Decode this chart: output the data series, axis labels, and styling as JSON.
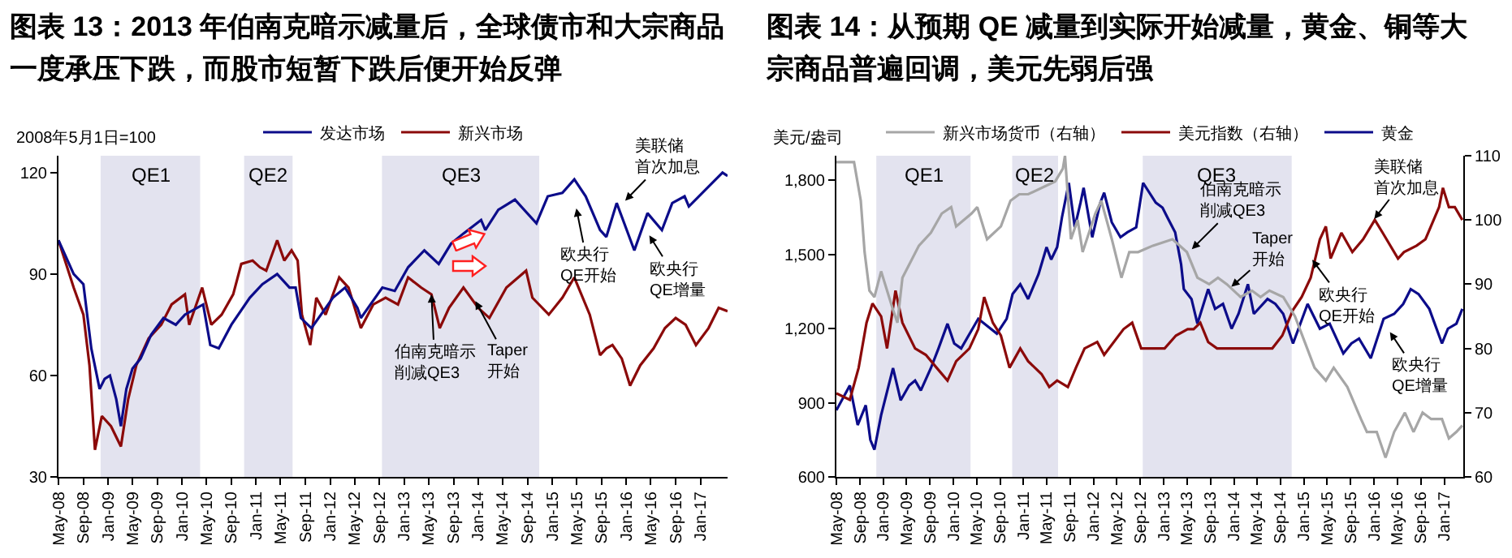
{
  "chart_data": [
    {
      "type": "line",
      "title": "图表 13：2013 年伯南克暗示减量后，全球债市和大宗商品一度承压下跌，而股市短暂下跌后便开始反弹",
      "ylabel": "2008年5月1日=100",
      "legend": "top",
      "xlim": [
        "2008-05-01",
        "2017-05-15"
      ],
      "ylim": [
        30,
        125
      ],
      "yticks": [
        30,
        60,
        90,
        120
      ],
      "xticks": [
        {
          "value": "2008-05",
          "label": "May-08"
        },
        {
          "value": "2008-09",
          "label": "Sep-08"
        },
        {
          "value": "2009-01",
          "label": "Jan-09"
        },
        {
          "value": "2009-05",
          "label": "May-09"
        },
        {
          "value": "2009-09",
          "label": "Sep-09"
        },
        {
          "value": "2010-01",
          "label": "Jan-10"
        },
        {
          "value": "2010-05",
          "label": "May-10"
        },
        {
          "value": "2010-09",
          "label": "Sep-10"
        },
        {
          "value": "2011-01",
          "label": "Jan-11"
        },
        {
          "value": "2011-05",
          "label": "May-11"
        },
        {
          "value": "2011-09",
          "label": "Sep-11"
        },
        {
          "value": "2012-01",
          "label": "Jan-12"
        },
        {
          "value": "2012-05",
          "label": "May-12"
        },
        {
          "value": "2012-09",
          "label": "Sep-12"
        },
        {
          "value": "2013-01",
          "label": "Jan-13"
        },
        {
          "value": "2013-05",
          "label": "May-13"
        },
        {
          "value": "2013-09",
          "label": "Sep-13"
        },
        {
          "value": "2014-01",
          "label": "Jan-14"
        },
        {
          "value": "2014-05",
          "label": "May-14"
        },
        {
          "value": "2014-09",
          "label": "Sep-14"
        },
        {
          "value": "2015-01",
          "label": "Jan-15"
        },
        {
          "value": "2015-05",
          "label": "May-15"
        },
        {
          "value": "2015-09",
          "label": "Sep-15"
        },
        {
          "value": "2016-01",
          "label": "Jan-16"
        },
        {
          "value": "2016-05",
          "label": "May-16"
        },
        {
          "value": "2016-09",
          "label": "Sep-16"
        },
        {
          "value": "2017-01",
          "label": "Jan-17"
        }
      ],
      "bands": [
        {
          "axis": "x",
          "from": "2008-11-25",
          "to": "2010-03-31",
          "label": "QE1",
          "color": "#e3e3ef"
        },
        {
          "axis": "x",
          "from": "2010-11-03",
          "to": "2011-06-30",
          "label": "QE2",
          "color": "#e3e3ef"
        },
        {
          "axis": "x",
          "from": "2012-09-13",
          "to": "2014-10-29",
          "label": "QE3",
          "color": "#e3e3ef"
        }
      ],
      "annotations": [
        "美联储首次加息",
        "欧央行\nQE开始",
        "欧央行\nQE增量",
        {
          "text": "伯南克暗示削减QE3",
          "x": "2013-05-15",
          "y": 84
        },
        {
          "text": "Taper\n开始",
          "x": "2013-12-18",
          "y": 82
        }
      ],
      "series": [
        {
          "name": "发达市场",
          "color": "#0c0c8a",
          "x": [
            "2008-05-01",
            "2008-07-15",
            "2008-09-01",
            "2008-10-10",
            "2008-11-20",
            "2008-12-15",
            "2009-01-10",
            "2009-02-10",
            "2009-03-05",
            "2009-04-01",
            "2009-05-01",
            "2009-06-10",
            "2009-08-01",
            "2009-10-01",
            "2009-12-01",
            "2010-01-15",
            "2010-04-15",
            "2010-05-20",
            "2010-07-01",
            "2010-09-01",
            "2010-12-01",
            "2011-02-01",
            "2011-04-15",
            "2011-06-15",
            "2011-07-15",
            "2011-08-10",
            "2011-10-01",
            "2012-01-15",
            "2012-03-15",
            "2012-05-15",
            "2012-06-01",
            "2012-09-15",
            "2012-11-15",
            "2013-01-20",
            "2013-04-10",
            "2013-06-20",
            "2013-08-20",
            "2013-10-20",
            "2014-01-15",
            "2014-02-05",
            "2014-04-10",
            "2014-07-01",
            "2014-10-15",
            "2014-12-10",
            "2015-02-20",
            "2015-04-20",
            "2015-06-15",
            "2015-08-25",
            "2015-09-25",
            "2015-11-15",
            "2016-02-10",
            "2016-04-15",
            "2016-06-25",
            "2016-08-15",
            "2016-10-15",
            "2016-11-05",
            "2017-03-01",
            "2017-04-20",
            "2017-05-15"
          ],
          "values": [
            100,
            90,
            87,
            68,
            56,
            59,
            60,
            53,
            45,
            56,
            62,
            65,
            72,
            77,
            75,
            78,
            81,
            69,
            68,
            75,
            83,
            87,
            90,
            86,
            86,
            77,
            74,
            83,
            86,
            80,
            77,
            86,
            85,
            92,
            97,
            93,
            99,
            102,
            106,
            103,
            109,
            112,
            105,
            113,
            114,
            118,
            113,
            103,
            101,
            111,
            97,
            108,
            103,
            111,
            113,
            110,
            117,
            120,
            119
          ]
        },
        {
          "name": "新兴市场",
          "color": "#8b0a0a",
          "x": [
            "2008-05-01",
            "2008-07-15",
            "2008-09-01",
            "2008-10-01",
            "2008-10-28",
            "2008-12-01",
            "2009-01-15",
            "2009-03-05",
            "2009-04-10",
            "2009-05-20",
            "2009-07-20",
            "2009-09-20",
            "2009-11-10",
            "2010-01-15",
            "2010-02-05",
            "2010-04-10",
            "2010-05-25",
            "2010-07-15",
            "2010-09-10",
            "2010-10-20",
            "2010-12-15",
            "2011-01-20",
            "2011-02-20",
            "2011-04-15",
            "2011-05-20",
            "2011-06-25",
            "2011-07-25",
            "2011-08-15",
            "2011-09-25",
            "2011-10-25",
            "2011-12-10",
            "2012-02-15",
            "2012-04-01",
            "2012-06-01",
            "2012-08-01",
            "2012-10-01",
            "2012-12-01",
            "2013-01-20",
            "2013-03-25",
            "2013-05-15",
            "2013-06-25",
            "2013-08-10",
            "2013-10-20",
            "2014-01-01",
            "2014-02-25",
            "2014-05-20",
            "2014-08-25",
            "2014-09-25",
            "2014-12-15",
            "2015-02-20",
            "2015-04-20",
            "2015-07-05",
            "2015-08-25",
            "2015-09-25",
            "2015-10-25",
            "2015-12-10",
            "2016-01-20",
            "2016-03-10",
            "2016-05-15",
            "2016-07-10",
            "2016-09-01",
            "2016-10-20",
            "2016-12-10",
            "2017-02-10",
            "2017-04-01",
            "2017-05-15"
          ],
          "values": [
            100,
            86,
            78,
            63,
            38,
            48,
            45,
            39,
            53,
            63,
            71,
            75,
            81,
            84,
            75,
            86,
            75,
            78,
            84,
            93,
            94,
            92,
            91,
            100,
            94,
            97,
            94,
            78,
            69,
            83,
            78,
            89,
            86,
            74,
            81,
            83,
            81,
            89,
            86,
            84,
            74,
            80,
            86,
            80,
            77,
            86,
            91,
            83,
            78,
            83,
            89,
            78,
            66,
            68,
            69,
            65,
            57,
            63,
            68,
            74,
            77,
            75,
            69,
            74,
            80,
            79
          ]
        }
      ]
    },
    {
      "type": "line",
      "title": "图表 14：从预期 QE 减量到实际开始减量，黄金、铜等大宗商品普遍回调，美元先弱后强",
      "ylabel": "美元/盎司",
      "legend": "top",
      "xlim": [
        "2008-05-01",
        "2017-04-10"
      ],
      "ylim": [
        600,
        1900
      ],
      "yticks": [
        600,
        900,
        {
          "value": 1200,
          "label": "1,200"
        },
        {
          "value": 1500,
          "label": "1,500"
        },
        {
          "value": 1800,
          "label": "1,800"
        }
      ],
      "y2lim": [
        60,
        110
      ],
      "y2ticks": [
        60,
        70,
        80,
        90,
        100,
        110
      ],
      "xticks": [
        {
          "value": "2008-05",
          "label": "May-08"
        },
        {
          "value": "2008-09",
          "label": "Sep-08"
        },
        {
          "value": "2009-01",
          "label": "Jan-09"
        },
        {
          "value": "2009-05",
          "label": "May-09"
        },
        {
          "value": "2009-09",
          "label": "Sep-09"
        },
        {
          "value": "2010-01",
          "label": "Jan-10"
        },
        {
          "value": "2010-05",
          "label": "May-10"
        },
        {
          "value": "2010-09",
          "label": "Sep-10"
        },
        {
          "value": "2011-01",
          "label": "Jan-11"
        },
        {
          "value": "2011-05",
          "label": "May-11"
        },
        {
          "value": "2011-09",
          "label": "Sep-11"
        },
        {
          "value": "2012-01",
          "label": "Jan-12"
        },
        {
          "value": "2012-05",
          "label": "May-12"
        },
        {
          "value": "2012-09",
          "label": "Sep-12"
        },
        {
          "value": "2013-01",
          "label": "Jan-13"
        },
        {
          "value": "2013-05",
          "label": "May-13"
        },
        {
          "value": "2013-09",
          "label": "Sep-13"
        },
        {
          "value": "2014-01",
          "label": "Jan-14"
        },
        {
          "value": "2014-05",
          "label": "May-14"
        },
        {
          "value": "2014-09",
          "label": "Sep-14"
        },
        {
          "value": "2015-01",
          "label": "Jan-15"
        },
        {
          "value": "2015-05",
          "label": "May-15"
        },
        {
          "value": "2015-09",
          "label": "Sep-15"
        },
        {
          "value": "2016-01",
          "label": "Jan-16"
        },
        {
          "value": "2016-05",
          "label": "May-16"
        },
        {
          "value": "2016-09",
          "label": "Sep-16"
        },
        {
          "value": "2017-01",
          "label": "Jan-17"
        }
      ],
      "bands": [
        {
          "axis": "x",
          "from": "2008-11-25",
          "to": "2010-03-31",
          "label": "QE1",
          "color": "#e3e3ef"
        },
        {
          "axis": "x",
          "from": "2010-11-03",
          "to": "2011-06-30",
          "label": "QE2",
          "color": "#e3e3ef"
        },
        {
          "axis": "x",
          "from": "2012-09-13",
          "to": "2014-10-29",
          "label": "QE3",
          "color": "#e3e3ef"
        }
      ],
      "annotations": [
        "美联储首次加息",
        "伯南克暗示削减QE3",
        "Taper\n开始",
        "欧央行\nQE开始",
        "欧央行\nQE增量"
      ],
      "series": [
        {
          "name": "新兴市场货币（右轴）",
          "color": "#a6a6a6",
          "axis": "y2",
          "x": [
            "2008-05-01",
            "2008-08-01",
            "2008-09-05",
            "2008-09-25",
            "2008-10-20",
            "2008-11-15",
            "2008-12-20",
            "2009-02-20",
            "2009-03-15",
            "2009-04-10",
            "2009-07-05",
            "2009-09-05",
            "2009-11-01",
            "2009-12-20",
            "2010-01-15",
            "2010-04-05",
            "2010-05-05",
            "2010-06-25",
            "2010-09-05",
            "2010-10-25",
            "2010-12-10",
            "2011-01-25",
            "2011-06-15",
            "2011-07-25",
            "2011-08-05",
            "2011-09-05",
            "2011-10-10",
            "2011-11-05",
            "2012-01-10",
            "2012-02-10",
            "2012-04-05",
            "2012-05-25",
            "2012-07-05",
            "2012-08-20",
            "2012-11-05",
            "2013-02-15",
            "2013-05-01",
            "2013-06-25",
            "2013-08-25",
            "2013-10-10",
            "2013-11-25",
            "2014-02-05",
            "2014-04-05",
            "2014-05-20",
            "2014-07-05",
            "2014-09-15",
            "2014-11-15",
            "2015-01-05",
            "2015-02-25",
            "2015-04-25",
            "2015-06-05",
            "2015-08-15",
            "2015-10-25",
            "2015-11-25",
            "2016-01-15",
            "2016-03-01",
            "2016-04-15",
            "2016-06-10",
            "2016-07-25",
            "2016-09-10",
            "2016-10-25",
            "2016-12-20",
            "2017-01-25",
            "2017-03-05",
            "2017-04-05"
          ],
          "values": [
            109,
            109,
            103,
            95,
            89,
            88,
            92,
            86,
            84,
            91,
            96,
            98,
            101,
            102,
            99,
            101,
            102,
            97,
            99,
            103,
            104,
            104,
            106,
            108,
            110,
            97,
            100,
            95,
            101,
            103,
            97,
            91,
            95,
            95,
            96,
            97,
            95,
            91,
            90,
            91,
            90,
            88,
            89,
            88,
            89,
            88,
            85,
            81,
            77,
            75,
            77,
            74,
            69,
            67,
            67,
            63,
            67,
            70,
            67,
            70,
            69,
            69,
            66,
            67,
            68
          ]
        },
        {
          "name": "美元指数（右轴）",
          "color": "#8b0a0a",
          "axis": "y2",
          "x": [
            "2008-05-01",
            "2008-07-10",
            "2008-08-25",
            "2008-10-05",
            "2008-11-05",
            "2008-12-20",
            "2009-01-20",
            "2009-03-05",
            "2009-04-10",
            "2009-06-15",
            "2009-08-10",
            "2009-10-05",
            "2009-12-01",
            "2010-01-15",
            "2010-03-25",
            "2010-05-10",
            "2010-06-10",
            "2010-07-25",
            "2010-09-05",
            "2010-10-20",
            "2010-12-15",
            "2011-01-25",
            "2011-04-05",
            "2011-05-15",
            "2011-06-25",
            "2011-08-20",
            "2011-10-01",
            "2011-11-15",
            "2012-01-20",
            "2012-02-25",
            "2012-06-05",
            "2012-07-20",
            "2012-09-05",
            "2012-11-05",
            "2013-01-05",
            "2013-03-05",
            "2013-05-05",
            "2013-06-05",
            "2013-07-10",
            "2013-08-20",
            "2013-10-05",
            "2013-11-25",
            "2014-01-25",
            "2014-04-15",
            "2014-05-25",
            "2014-07-20",
            "2014-09-10",
            "2014-11-05",
            "2014-12-20",
            "2015-02-05",
            "2015-03-25",
            "2015-04-25",
            "2015-05-20",
            "2015-07-15",
            "2015-09-10",
            "2015-11-05",
            "2016-01-05",
            "2016-02-15",
            "2016-05-05",
            "2016-06-05",
            "2016-08-10",
            "2016-09-25",
            "2016-12-05",
            "2016-12-25",
            "2017-01-25",
            "2017-02-25",
            "2017-04-05"
          ],
          "values": [
            73,
            72,
            77,
            84,
            87,
            85,
            80,
            89,
            84,
            80,
            79,
            77,
            75,
            78,
            80,
            83,
            88,
            84,
            82,
            77,
            80,
            78,
            76,
            74,
            75,
            74,
            77,
            80,
            81,
            79,
            83,
            84,
            80,
            80,
            80,
            82,
            83,
            83,
            84,
            81,
            80,
            80,
            80,
            80,
            80,
            80,
            82,
            86,
            88,
            91,
            97,
            99,
            94,
            98,
            95,
            97,
            100,
            98,
            94,
            95,
            96,
            97,
            102,
            105,
            102,
            102,
            100
          ]
        },
        {
          "name": "黄金",
          "color": "#0c0c8a",
          "x": [
            "2008-05-01",
            "2008-07-10",
            "2008-08-20",
            "2008-10-01",
            "2008-10-25",
            "2008-11-15",
            "2008-12-20",
            "2009-02-20",
            "2009-04-01",
            "2009-05-15",
            "2009-06-15",
            "2009-07-15",
            "2009-09-05",
            "2009-10-15",
            "2009-12-01",
            "2010-01-05",
            "2010-02-10",
            "2010-05-10",
            "2010-08-15",
            "2010-10-05",
            "2010-11-05",
            "2010-12-15",
            "2011-01-25",
            "2011-03-20",
            "2011-05-01",
            "2011-05-25",
            "2011-06-25",
            "2011-07-20",
            "2011-08-25",
            "2011-09-25",
            "2011-10-25",
            "2011-11-10",
            "2011-12-25",
            "2012-02-05",
            "2012-02-25",
            "2012-04-05",
            "2012-05-20",
            "2012-06-25",
            "2012-08-10",
            "2012-09-15",
            "2012-11-20",
            "2012-12-25",
            "2013-01-20",
            "2013-03-01",
            "2013-04-01",
            "2013-04-15",
            "2013-05-25",
            "2013-06-25",
            "2013-08-20",
            "2013-09-25",
            "2013-11-05",
            "2013-12-20",
            "2014-01-25",
            "2014-03-15",
            "2014-04-15",
            "2014-06-25",
            "2014-08-05",
            "2014-09-15",
            "2014-11-05",
            "2015-01-20",
            "2015-03-25",
            "2015-05-15",
            "2015-07-25",
            "2015-09-05",
            "2015-10-15",
            "2015-12-15",
            "2016-02-20",
            "2016-04-15",
            "2016-06-01",
            "2016-07-10",
            "2016-08-20",
            "2016-10-15",
            "2016-12-20",
            "2017-01-20",
            "2017-03-05",
            "2017-04-05"
          ],
          "values": [
            870,
            970,
            810,
            890,
            750,
            710,
            850,
            1040,
            910,
            970,
            990,
            950,
            1040,
            1120,
            1220,
            1140,
            1120,
            1240,
            1180,
            1240,
            1340,
            1380,
            1320,
            1420,
            1530,
            1480,
            1530,
            1650,
            1790,
            1610,
            1710,
            1770,
            1570,
            1710,
            1750,
            1630,
            1570,
            1590,
            1610,
            1790,
            1710,
            1690,
            1650,
            1590,
            1460,
            1360,
            1320,
            1220,
            1360,
            1280,
            1300,
            1200,
            1260,
            1380,
            1260,
            1320,
            1300,
            1260,
            1140,
            1300,
            1200,
            1220,
            1100,
            1140,
            1160,
            1080,
            1240,
            1260,
            1300,
            1360,
            1340,
            1280,
            1140,
            1200,
            1220,
            1280
          ]
        }
      ]
    }
  ]
}
